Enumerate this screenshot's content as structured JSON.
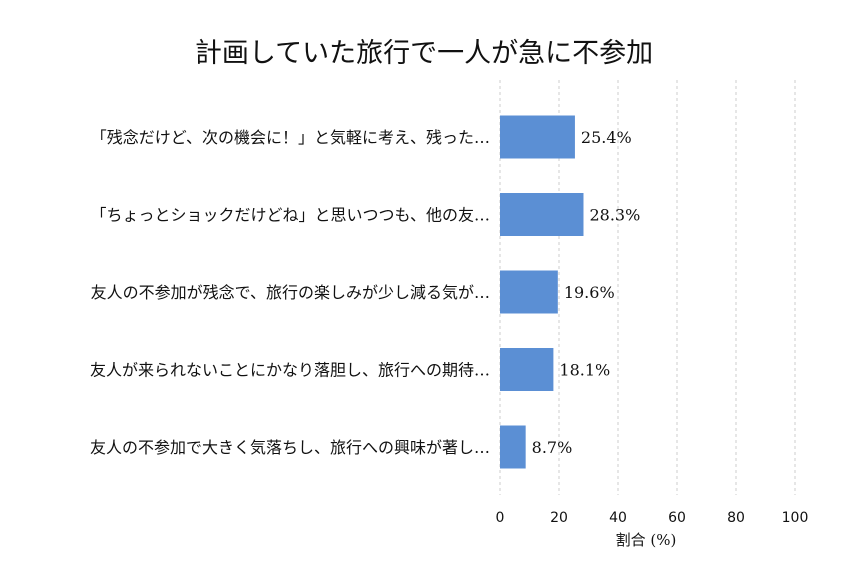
{
  "chart_data": {
    "type": "bar",
    "orientation": "horizontal",
    "title": "計画していた旅行で一人が急に不参加",
    "xlabel": "割合 (%)",
    "ylabel": "",
    "categories": [
      "「残念だけど、次の機会に！」と気軽に考え、残った…",
      "「ちょっとショックだけどね」と思いつつも、他の友…",
      "友人の不参加が残念で、旅行の楽しみが少し減る気が…",
      "友人が来られないことにかなり落胆し、旅行への期待…",
      "友人の不参加で大きく気落ちし、旅行への興味が著し…"
    ],
    "values": [
      25.4,
      28.3,
      19.6,
      18.1,
      8.7
    ],
    "value_labels": [
      "25.4%",
      "28.3%",
      "19.6%",
      "18.1%",
      "8.7%"
    ],
    "xlim": [
      0,
      100
    ],
    "xticks": [
      0,
      20,
      40,
      60,
      80,
      100
    ],
    "bar_color": "#5b8fd4",
    "grid": true,
    "legend": "none"
  }
}
